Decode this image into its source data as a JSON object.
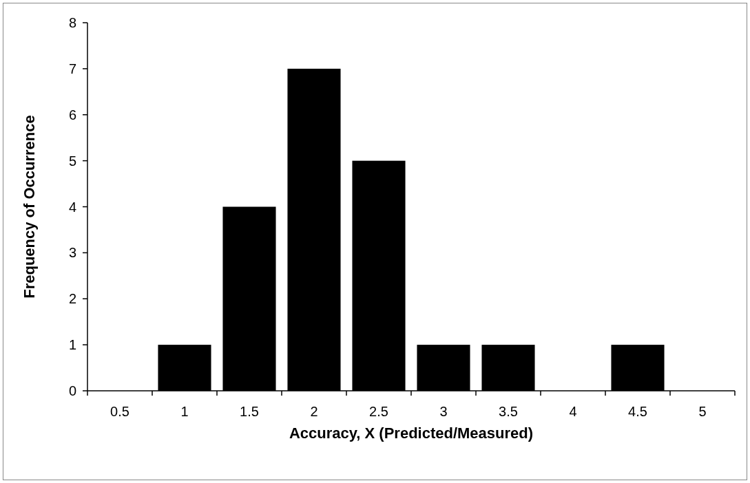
{
  "chart_data": {
    "type": "bar",
    "xlabel": "Accuracy, X (Predicted/Measured)",
    "ylabel": "Frequency of Occurrence",
    "categories": [
      "0.5",
      "1",
      "1.5",
      "2",
      "2.5",
      "3",
      "3.5",
      "4",
      "4.5",
      "5"
    ],
    "values": [
      0,
      1,
      4,
      7,
      5,
      1,
      1,
      0,
      1,
      0
    ],
    "color": "#000000",
    "ylim": [
      0,
      8
    ],
    "yticks": [
      0,
      1,
      2,
      3,
      4,
      5,
      6,
      7,
      8
    ]
  }
}
